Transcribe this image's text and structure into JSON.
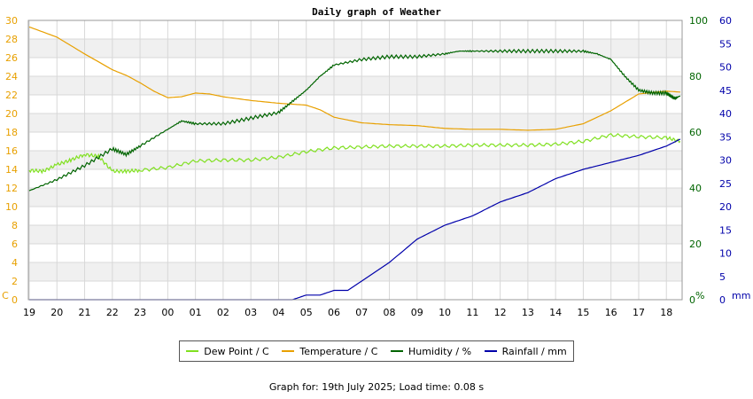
{
  "chart_data": {
    "type": "line",
    "title": "Daily graph of Weather",
    "x_tick_labels": [
      "19",
      "20",
      "21",
      "22",
      "23",
      "00",
      "01",
      "02",
      "03",
      "04",
      "05",
      "06",
      "07",
      "08",
      "09",
      "10",
      "11",
      "12",
      "13",
      "14",
      "15",
      "16",
      "17",
      "18"
    ],
    "left_axis": {
      "unit": "C",
      "range": [
        0,
        30
      ],
      "ticks": [
        0,
        2,
        4,
        6,
        8,
        10,
        12,
        14,
        16,
        18,
        20,
        22,
        24,
        26,
        28,
        30
      ],
      "color": "#e8a000"
    },
    "humidity_axis": {
      "unit": "%",
      "range": [
        0,
        100
      ],
      "ticks": [
        0,
        20,
        40,
        60,
        80,
        100
      ],
      "color": "#006400"
    },
    "rain_axis": {
      "unit": "mm",
      "range": [
        0,
        60
      ],
      "ticks": [
        0,
        5,
        10,
        15,
        20,
        25,
        30,
        35,
        40,
        45,
        50,
        55,
        60
      ],
      "color": "#0000aa"
    },
    "grid": true,
    "series": [
      {
        "name": "Dew Point / C",
        "axis": "left",
        "color": "#80e020",
        "x": [
          0,
          0.5,
          1,
          1.5,
          2,
          2.5,
          3,
          3.5,
          4,
          5,
          6,
          7,
          8,
          9,
          10,
          11,
          12,
          13,
          14,
          15,
          16,
          17,
          18,
          19,
          20,
          21,
          22,
          23,
          23.5
        ],
        "y": [
          13.9,
          13.8,
          14.5,
          15.0,
          15.6,
          15.4,
          13.8,
          13.8,
          13.9,
          14.2,
          14.9,
          15.0,
          15.0,
          15.3,
          15.9,
          16.3,
          16.4,
          16.5,
          16.5,
          16.5,
          16.6,
          16.6,
          16.6,
          16.7,
          17.0,
          17.7,
          17.5,
          17.4,
          17.0
        ]
      },
      {
        "name": "Temperature / C",
        "axis": "left",
        "color": "#e8a000",
        "x": [
          0,
          1,
          2,
          3,
          3.5,
          4,
          4.5,
          5,
          5.5,
          6,
          6.5,
          7,
          8,
          9,
          10,
          10.5,
          11,
          12,
          13,
          14,
          15,
          16,
          17,
          18,
          19,
          20,
          21,
          22,
          23,
          23.5
        ],
        "y": [
          29.3,
          28.2,
          26.4,
          24.7,
          24.1,
          23.3,
          22.4,
          21.7,
          21.8,
          22.2,
          22.1,
          21.8,
          21.4,
          21.1,
          20.9,
          20.4,
          19.6,
          19.0,
          18.8,
          18.7,
          18.4,
          18.3,
          18.3,
          18.2,
          18.3,
          18.9,
          20.3,
          22.1,
          22.4,
          22.3
        ]
      },
      {
        "name": "Humidity / %",
        "axis": "humidity",
        "color": "#006400",
        "x": [
          0,
          1,
          2,
          3,
          3.5,
          4,
          5,
          5.5,
          6,
          7,
          8,
          9,
          9.5,
          10,
          10.5,
          11,
          12,
          13,
          14,
          15,
          15.5,
          16,
          17,
          18,
          19,
          20,
          20.5,
          21,
          21.5,
          22,
          22.5,
          23,
          23.3,
          23.5
        ],
        "y": [
          39,
          43,
          48,
          54,
          52,
          55,
          61,
          64,
          63,
          63,
          65,
          67,
          71,
          75,
          80,
          84,
          86,
          87,
          87,
          88,
          89,
          89,
          89,
          89,
          89,
          89,
          88,
          86,
          80,
          75,
          74,
          74,
          72,
          73
        ]
      },
      {
        "name": "Rainfall / mm",
        "axis": "rain",
        "color": "#0000aa",
        "x": [
          0,
          9,
          9.5,
          10,
          10.5,
          11,
          11.5,
          12,
          12.5,
          13,
          14,
          15,
          16,
          17,
          18,
          19,
          20,
          21,
          22,
          23,
          23.5
        ],
        "y": [
          0,
          0,
          0,
          1,
          1,
          2,
          2,
          4,
          6,
          8,
          13,
          16,
          18,
          21,
          23,
          26,
          28,
          29.5,
          31,
          33,
          34.5
        ]
      }
    ],
    "legend_position": "bottom-center"
  },
  "legend": [
    {
      "label": "Dew Point / C",
      "color": "#80e020"
    },
    {
      "label": "Temperature / C",
      "color": "#e8a000"
    },
    {
      "label": "Humidity / %",
      "color": "#006400"
    },
    {
      "label": "Rainfall / mm",
      "color": "#0000aa"
    }
  ],
  "footer": "Graph for: 19th July 2025; Load time: 0.08 s"
}
